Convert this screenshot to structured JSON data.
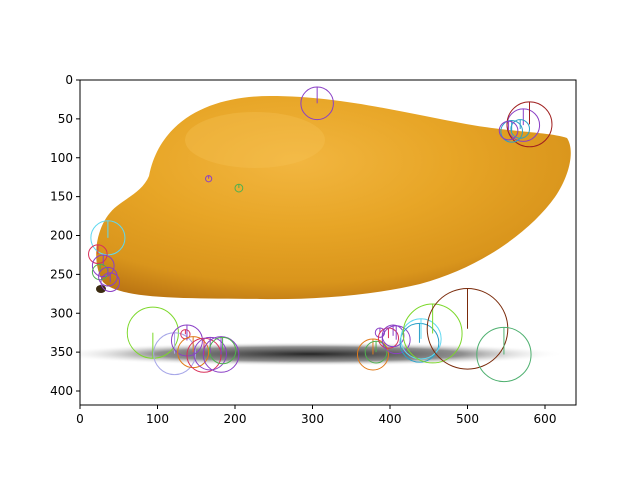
{
  "chart_data": {
    "type": "image",
    "title": "",
    "xlabel": "",
    "ylabel": "",
    "xlim": [
      0,
      640
    ],
    "ylim": [
      0,
      418
    ],
    "y_inverted": true,
    "grid": false,
    "x_ticks": [
      0,
      100,
      200,
      300,
      400,
      500,
      600
    ],
    "y_ticks": [
      0,
      50,
      100,
      150,
      200,
      250,
      300,
      350,
      400
    ],
    "image_subject": "mango on white background with shadow",
    "keypoints": [
      {
        "x": 306,
        "y": 30,
        "r": 21,
        "angle": 270,
        "color": "#8a3fc6"
      },
      {
        "x": 572,
        "y": 58,
        "r": 21,
        "angle": 270,
        "color": "#8a3fc6"
      },
      {
        "x": 580,
        "y": 57,
        "r": 29,
        "angle": 270,
        "color": "#a02020"
      },
      {
        "x": 568,
        "y": 63,
        "r": 12,
        "angle": 270,
        "color": "#2aa0c8"
      },
      {
        "x": 557,
        "y": 66,
        "r": 14,
        "angle": 270,
        "color": "#2aa0c8"
      },
      {
        "x": 553,
        "y": 65,
        "r": 12,
        "angle": 270,
        "color": "#8a3fc6"
      },
      {
        "x": 205,
        "y": 139,
        "r": 5,
        "angle": 270,
        "color": "#4fb04f"
      },
      {
        "x": 166,
        "y": 127,
        "r": 4,
        "angle": 270,
        "color": "#8a3fc6"
      },
      {
        "x": 36,
        "y": 203,
        "r": 22,
        "angle": 270,
        "color": "#5fd8f0"
      },
      {
        "x": 23,
        "y": 224,
        "r": 12,
        "angle": 270,
        "color": "#d8305a"
      },
      {
        "x": 30,
        "y": 239,
        "r": 14,
        "angle": 270,
        "color": "#8a3fc6"
      },
      {
        "x": 26,
        "y": 247,
        "r": 10,
        "angle": 270,
        "color": "#4fb04f"
      },
      {
        "x": 36,
        "y": 253,
        "r": 12,
        "angle": 270,
        "color": "#8a3fc6"
      },
      {
        "x": 39,
        "y": 260,
        "r": 12,
        "angle": 270,
        "color": "#8a3fc6"
      },
      {
        "x": 94,
        "y": 325,
        "r": 33,
        "angle": 90,
        "color": "#7cd82a"
      },
      {
        "x": 122,
        "y": 352,
        "r": 27,
        "angle": 270,
        "color": "#a7a7e8"
      },
      {
        "x": 136,
        "y": 327,
        "r": 6,
        "angle": 270,
        "color": "#d8305a"
      },
      {
        "x": 138,
        "y": 335,
        "r": 20,
        "angle": 270,
        "color": "#8a3fc6"
      },
      {
        "x": 146,
        "y": 350,
        "r": 20,
        "angle": 270,
        "color": "#e07a1a"
      },
      {
        "x": 160,
        "y": 354,
        "r": 22,
        "angle": 270,
        "color": "#d8305a"
      },
      {
        "x": 168,
        "y": 352,
        "r": 21,
        "angle": 270,
        "color": "#8a3fc6"
      },
      {
        "x": 182,
        "y": 353,
        "r": 23,
        "angle": 270,
        "color": "#8a3fc6"
      },
      {
        "x": 184,
        "y": 348,
        "r": 17,
        "angle": 270,
        "color": "#4fb04f"
      },
      {
        "x": 378,
        "y": 353,
        "r": 20,
        "angle": 270,
        "color": "#e07a1a"
      },
      {
        "x": 382,
        "y": 350,
        "r": 14,
        "angle": 270,
        "color": "#4fb04f"
      },
      {
        "x": 387,
        "y": 325,
        "r": 6,
        "angle": 270,
        "color": "#8a3fc6"
      },
      {
        "x": 398,
        "y": 332,
        "r": 13,
        "angle": 270,
        "color": "#d8305a"
      },
      {
        "x": 404,
        "y": 329,
        "r": 14,
        "angle": 270,
        "color": "#8a3fc6"
      },
      {
        "x": 408,
        "y": 334,
        "r": 18,
        "angle": 270,
        "color": "#8a3fc6"
      },
      {
        "x": 438,
        "y": 338,
        "r": 25,
        "angle": 270,
        "color": "#2aa0c8"
      },
      {
        "x": 440,
        "y": 333,
        "r": 26,
        "angle": 270,
        "color": "#5fd8f0"
      },
      {
        "x": 455,
        "y": 326,
        "r": 38,
        "angle": 270,
        "color": "#7cd82a"
      },
      {
        "x": 500,
        "y": 320,
        "r": 52,
        "angle": 270,
        "color": "#7a2a0a"
      },
      {
        "x": 547,
        "y": 353,
        "r": 35,
        "angle": 270,
        "color": "#4fb070"
      }
    ]
  }
}
